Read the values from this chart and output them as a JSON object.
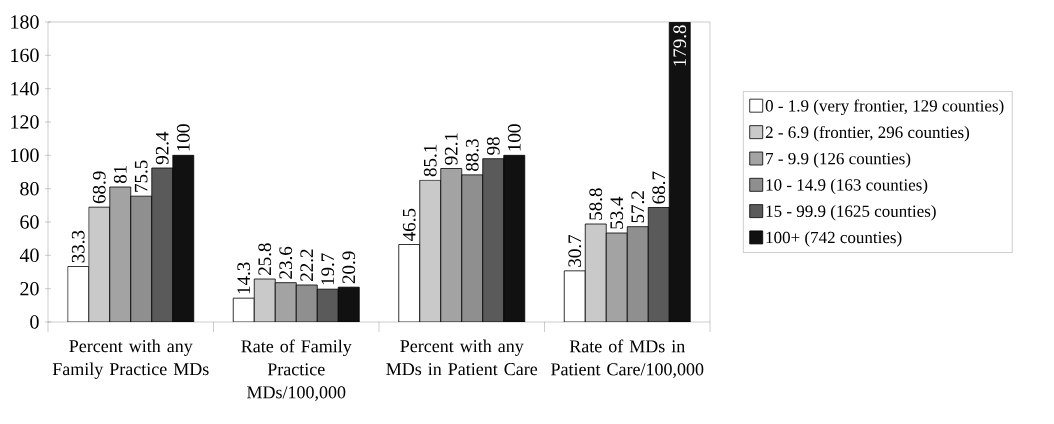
{
  "chart_data": {
    "type": "bar",
    "categories": [
      "Percent with any Family Practice MDs",
      "Rate of Family Practice MDs/100,000",
      "Percent with any MDs in Patient Care",
      "Rate of MDs in Patient Care/100,000"
    ],
    "series": [
      {
        "name": "0 - 1.9 (very frontier, 129 counties)",
        "color": "#ffffff",
        "values": [
          33.3,
          14.3,
          46.5,
          30.7
        ]
      },
      {
        "name": "2 - 6.9 (frontier, 296 counties)",
        "color": "#c9c9c9",
        "values": [
          68.9,
          25.8,
          85.1,
          58.8
        ]
      },
      {
        "name": "7 - 9.9 (126 counties)",
        "color": "#a3a3a3",
        "values": [
          81,
          23.6,
          92.1,
          53.4
        ]
      },
      {
        "name": "10 - 14.9 (163 counties)",
        "color": "#8f8f8f",
        "values": [
          75.5,
          22.2,
          88.3,
          57.2
        ]
      },
      {
        "name": "15 - 99.9 (1625 counties)",
        "color": "#5a5a5a",
        "values": [
          92.4,
          19.7,
          98,
          68.7
        ]
      },
      {
        "name": "100+ (742 counties)",
        "color": "#111111",
        "values": [
          100,
          20.9,
          100,
          179.8
        ]
      }
    ],
    "ylim": [
      0,
      180
    ],
    "yticks": [
      0,
      20,
      40,
      60,
      80,
      100,
      120,
      140,
      160,
      180
    ],
    "data_labels": true,
    "legend": "right",
    "grid": false
  }
}
